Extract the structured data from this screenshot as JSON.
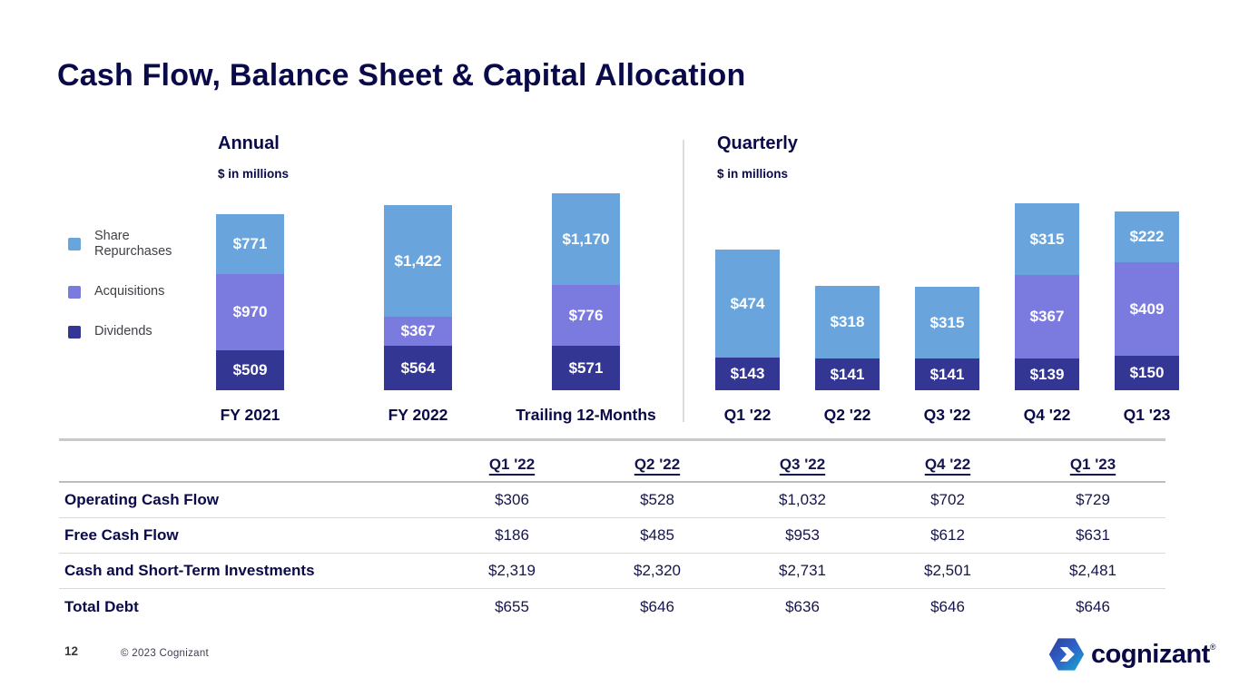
{
  "slide": {
    "title": "Cash Flow, Balance Sheet & Capital Allocation",
    "page_number": "12",
    "copyright": "© 2023 Cognizant",
    "brand_wordmark": "cognizant",
    "brand_registered_mark": "®"
  },
  "colors": {
    "share_repurchases": "#69a5dc",
    "acquisitions": "#7a7adf",
    "dividends": "#333693",
    "text_navy": "#0a0a4a"
  },
  "legend": [
    {
      "key": "share-repurchases",
      "label": "Share Repurchases",
      "color": "#69a5dc"
    },
    {
      "key": "acquisitions",
      "label": "Acquisitions",
      "color": "#7a7adf"
    },
    {
      "key": "dividends",
      "label": "Dividends",
      "color": "#333693"
    }
  ],
  "chart_data": [
    {
      "type": "bar",
      "stacked": true,
      "title": "Annual",
      "subtitle": "$ in millions",
      "categories": [
        "FY 2021",
        "FY 2022",
        "Trailing 12-Months"
      ],
      "series": [
        {
          "key": "share-repurchases",
          "name": "Share Repurchases",
          "color": "#69a5dc",
          "values": [
            771,
            1422,
            1170
          ]
        },
        {
          "key": "acquisitions",
          "name": "Acquisitions",
          "color": "#7a7adf",
          "values": [
            970,
            367,
            776
          ]
        },
        {
          "key": "dividends",
          "name": "Dividends",
          "color": "#333693",
          "values": [
            509,
            564,
            571
          ]
        }
      ],
      "data_labels": [
        [
          "$771",
          "$1,422",
          "$1,170"
        ],
        [
          "$970",
          "$367",
          "$776"
        ],
        [
          "$509",
          "$564",
          "$571"
        ]
      ],
      "legend_position": "left",
      "axes_visible": false
    },
    {
      "type": "bar",
      "stacked": true,
      "title": "Quarterly",
      "subtitle": "$ in millions",
      "categories": [
        "Q1 '22",
        "Q2 '22",
        "Q3 '22",
        "Q4 '22",
        "Q1 '23"
      ],
      "series": [
        {
          "key": "share-repurchases",
          "name": "Share Repurchases",
          "color": "#69a5dc",
          "values": [
            474,
            318,
            315,
            315,
            222
          ]
        },
        {
          "key": "acquisitions",
          "name": "Acquisitions",
          "color": "#7a7adf",
          "values": [
            0,
            0,
            0,
            367,
            409
          ]
        },
        {
          "key": "dividends",
          "name": "Dividends",
          "color": "#333693",
          "values": [
            143,
            141,
            141,
            139,
            150
          ]
        }
      ],
      "data_labels": [
        [
          "$474",
          "$318",
          "$315",
          "$315",
          "$222"
        ],
        [
          "",
          "",
          "",
          "$367",
          "$409"
        ],
        [
          "$143",
          "$141",
          "$141",
          "$139",
          "$150"
        ]
      ],
      "legend_position": "none",
      "axes_visible": false
    }
  ],
  "table": {
    "columns": [
      "Q1 '22",
      "Q2 '22",
      "Q3 '22",
      "Q4 '22",
      "Q1 '23"
    ],
    "rows": [
      {
        "label": "Operating Cash Flow",
        "values": [
          "$306",
          "$528",
          "$1,032",
          "$702",
          "$729"
        ]
      },
      {
        "label": "Free Cash Flow",
        "values": [
          "$186",
          "$485",
          "$953",
          "$612",
          "$631"
        ]
      },
      {
        "label": "Cash and Short-Term Investments",
        "values": [
          "$2,319",
          "$2,320",
          "$2,731",
          "$2,501",
          "$2,481"
        ]
      },
      {
        "label": "Total Debt",
        "values": [
          "$655",
          "$646",
          "$636",
          "$646",
          "$646"
        ]
      }
    ]
  }
}
